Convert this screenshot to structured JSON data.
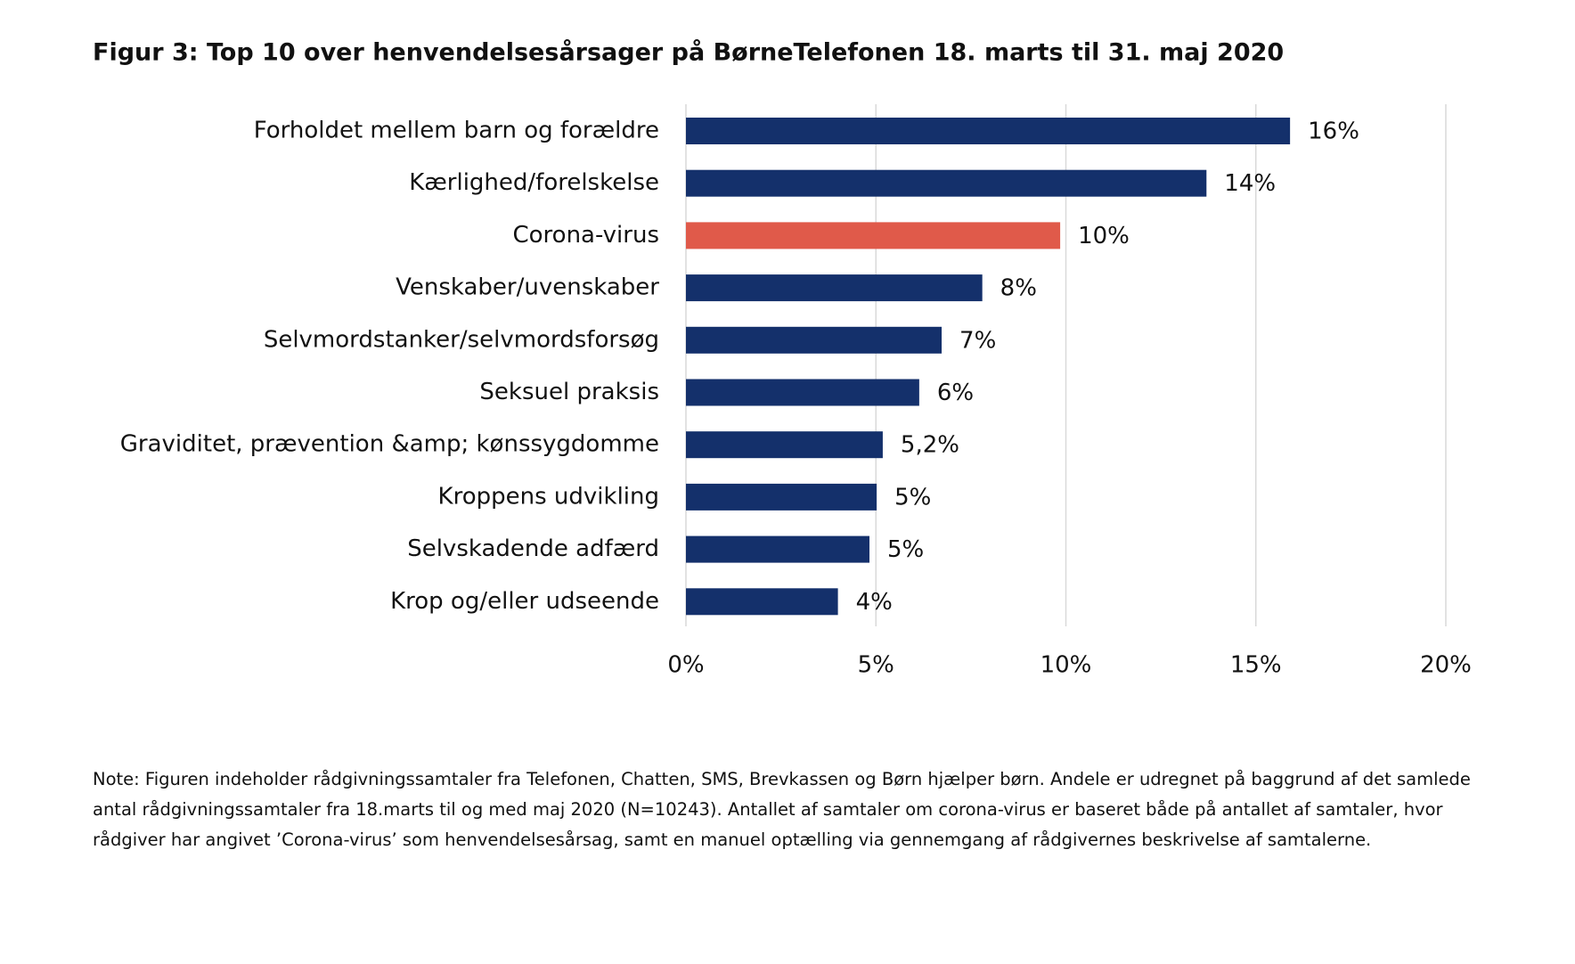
{
  "chart_data": {
    "type": "barh",
    "title": "Figur 3: Top 10 over henvendelsesårsager på BørneTelefonen 18. marts til 31. maj 2020",
    "categories": [
      "Forholdet mellem barn og forældre",
      "Kærlighed/forelskelse",
      "Corona-virus",
      "Venskaber/uvenskaber",
      "Selvmordstanker/selvmordsforsøg",
      "Seksuel praksis",
      "Graviditet, prævention &amp; kønssygdomme",
      "Kroppens udvikling",
      "Selvskadende adfærd",
      "Krop og/eller udseende"
    ],
    "values": [
      15.9,
      13.7,
      9.85,
      7.8,
      6.73,
      6.14,
      5.18,
      5.02,
      4.83,
      4.0
    ],
    "value_labels": [
      "16%",
      "14%",
      "10%",
      "8%",
      "7%",
      "6%",
      "5,2%",
      "5%",
      "5%",
      "4%"
    ],
    "colors": [
      "#14306b",
      "#14306b",
      "#e05a4a",
      "#14306b",
      "#14306b",
      "#14306b",
      "#14306b",
      "#14306b",
      "#14306b",
      "#14306b"
    ],
    "xlim": [
      0,
      20
    ],
    "xticks": [
      {
        "value": 0,
        "label": "0%"
      },
      {
        "value": 5,
        "label": "5%"
      },
      {
        "value": 10,
        "label": "10%"
      },
      {
        "value": 15,
        "label": "15%"
      },
      {
        "value": 20,
        "label": "20%"
      }
    ],
    "grid": true,
    "note": "Note: Figuren indeholder rådgivningssamtaler fra Telefonen, Chatten, SMS, Brevkassen og Børn hjælper børn. Andele er udregnet på baggrund af det samlede antal rådgivningssamtaler fra 18.marts til og med maj 2020 (N=10243). Antallet af samtaler om corona-virus er baseret både på antallet af samtaler, hvor rådgiver har angivet ’Corona-virus’ som henvendelsesårsag, samt en manuel optælling via gennemgang af rådgivernes beskrivelse af samtalerne."
  }
}
